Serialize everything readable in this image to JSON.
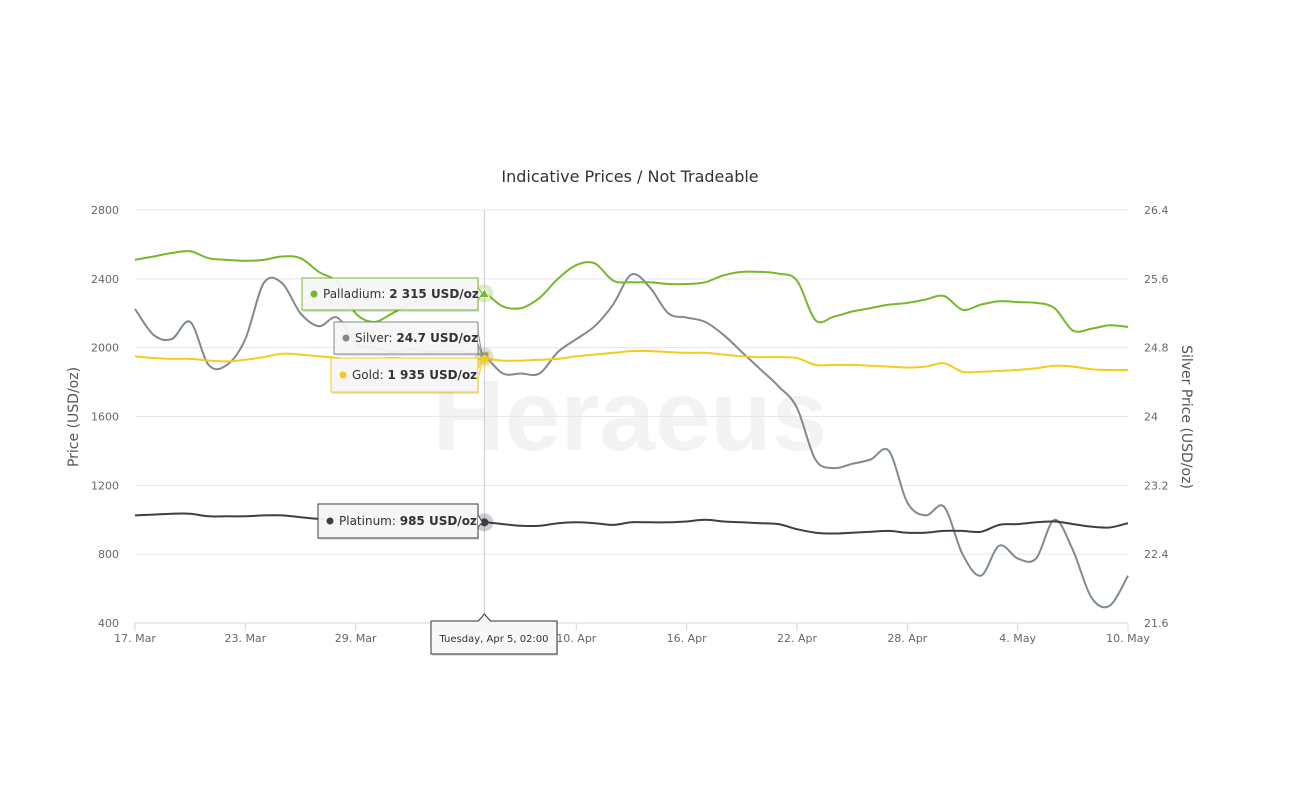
{
  "chart_data": {
    "type": "line",
    "title": "Indicative Prices / Not Tradeable",
    "watermark": "Heraeus",
    "xlabel": "",
    "ylabel": "Price (USD/oz)",
    "y2label": "Silver Price (USD/oz)",
    "ylim": [
      400,
      2800
    ],
    "y2lim": [
      21.6,
      26.4
    ],
    "xlim": [
      "2022-03-17",
      "2022-05-10"
    ],
    "yticks": [
      "400",
      "800",
      "1200",
      "1600",
      "2000",
      "2400",
      "2800"
    ],
    "y2ticks": [
      "21.6",
      "22.4",
      "23.2",
      "24",
      "24.8",
      "25.6",
      "26.4"
    ],
    "xticks": [
      {
        "date": "2022-03-17",
        "label": "17. Mar"
      },
      {
        "date": "2022-03-23",
        "label": "23. Mar"
      },
      {
        "date": "2022-03-29",
        "label": "29. Mar"
      },
      {
        "date": "2022-04-04",
        "label": "4. Apr"
      },
      {
        "date": "2022-04-10",
        "label": "10. Apr"
      },
      {
        "date": "2022-04-16",
        "label": "16. Apr"
      },
      {
        "date": "2022-04-22",
        "label": "22. Apr"
      },
      {
        "date": "2022-04-28",
        "label": "28. Apr"
      },
      {
        "date": "2022-05-04",
        "label": "4. May"
      },
      {
        "date": "2022-05-10",
        "label": "10. May"
      }
    ],
    "grid": true,
    "crosshair_date": "Tuesday, Apr 5, 02:00",
    "crosshair_x": "2022-04-05",
    "series": [
      {
        "name": "Palladium",
        "axis": "left",
        "color": "#76b82a",
        "marker": "triangle",
        "tooltip": "2 315 USD/oz",
        "tooltip_value": 2315,
        "data": [
          [
            "2022-03-17",
            2510
          ],
          [
            "2022-03-18",
            2530
          ],
          [
            "2022-03-19",
            2550
          ],
          [
            "2022-03-20",
            2560
          ],
          [
            "2022-03-21",
            2520
          ],
          [
            "2022-03-22",
            2510
          ],
          [
            "2022-03-23",
            2505
          ],
          [
            "2022-03-24",
            2510
          ],
          [
            "2022-03-25",
            2530
          ],
          [
            "2022-03-26",
            2520
          ],
          [
            "2022-03-27",
            2440
          ],
          [
            "2022-03-28",
            2380
          ],
          [
            "2022-03-29",
            2200
          ],
          [
            "2022-03-30",
            2150
          ],
          [
            "2022-03-31",
            2200
          ],
          [
            "2022-04-01",
            2260
          ],
          [
            "2022-04-02",
            2280
          ],
          [
            "2022-04-03",
            2300
          ],
          [
            "2022-04-04",
            2310
          ],
          [
            "2022-04-05",
            2315
          ],
          [
            "2022-04-06",
            2240
          ],
          [
            "2022-04-07",
            2230
          ],
          [
            "2022-04-08",
            2290
          ],
          [
            "2022-04-09",
            2400
          ],
          [
            "2022-04-10",
            2480
          ],
          [
            "2022-04-11",
            2490
          ],
          [
            "2022-04-12",
            2390
          ],
          [
            "2022-04-13",
            2380
          ],
          [
            "2022-04-14",
            2380
          ],
          [
            "2022-04-15",
            2370
          ],
          [
            "2022-04-16",
            2370
          ],
          [
            "2022-04-17",
            2380
          ],
          [
            "2022-04-18",
            2420
          ],
          [
            "2022-04-19",
            2440
          ],
          [
            "2022-04-20",
            2440
          ],
          [
            "2022-04-21",
            2430
          ],
          [
            "2022-04-22",
            2390
          ],
          [
            "2022-04-23",
            2160
          ],
          [
            "2022-04-24",
            2180
          ],
          [
            "2022-04-25",
            2210
          ],
          [
            "2022-04-26",
            2230
          ],
          [
            "2022-04-27",
            2250
          ],
          [
            "2022-04-28",
            2260
          ],
          [
            "2022-04-29",
            2280
          ],
          [
            "2022-04-30",
            2300
          ],
          [
            "2022-05-01",
            2220
          ],
          [
            "2022-05-02",
            2250
          ],
          [
            "2022-05-03",
            2270
          ],
          [
            "2022-05-04",
            2265
          ],
          [
            "2022-05-05",
            2260
          ],
          [
            "2022-05-06",
            2230
          ],
          [
            "2022-05-07",
            2100
          ],
          [
            "2022-05-08",
            2110
          ],
          [
            "2022-05-09",
            2130
          ],
          [
            "2022-05-10",
            2120
          ]
        ]
      },
      {
        "name": "Silver",
        "axis": "right",
        "color": "#7f8a93",
        "marker": "square",
        "tooltip": "24.7 USD/oz",
        "tooltip_value": 24.7,
        "data": [
          [
            "2022-03-17",
            25.25
          ],
          [
            "2022-03-18",
            24.95
          ],
          [
            "2022-03-19",
            24.9
          ],
          [
            "2022-03-20",
            25.1
          ],
          [
            "2022-03-21",
            24.6
          ],
          [
            "2022-03-22",
            24.6
          ],
          [
            "2022-03-23",
            24.9
          ],
          [
            "2022-03-24",
            25.55
          ],
          [
            "2022-03-25",
            25.55
          ],
          [
            "2022-03-26",
            25.2
          ],
          [
            "2022-03-27",
            25.05
          ],
          [
            "2022-03-28",
            25.15
          ],
          [
            "2022-03-29",
            24.85
          ],
          [
            "2022-03-30",
            24.8
          ],
          [
            "2022-03-31",
            24.75
          ],
          [
            "2022-04-01",
            24.78
          ],
          [
            "2022-04-02",
            24.75
          ],
          [
            "2022-04-03",
            24.76
          ],
          [
            "2022-04-04",
            24.75
          ],
          [
            "2022-04-05",
            24.7
          ],
          [
            "2022-04-06",
            24.5
          ],
          [
            "2022-04-07",
            24.5
          ],
          [
            "2022-04-08",
            24.5
          ],
          [
            "2022-04-09",
            24.75
          ],
          [
            "2022-04-10",
            24.9
          ],
          [
            "2022-04-11",
            25.05
          ],
          [
            "2022-04-12",
            25.3
          ],
          [
            "2022-04-13",
            25.65
          ],
          [
            "2022-04-14",
            25.5
          ],
          [
            "2022-04-15",
            25.2
          ],
          [
            "2022-04-16",
            25.15
          ],
          [
            "2022-04-17",
            25.1
          ],
          [
            "2022-04-18",
            24.95
          ],
          [
            "2022-04-19",
            24.75
          ],
          [
            "2022-04-20",
            24.55
          ],
          [
            "2022-04-21",
            24.35
          ],
          [
            "2022-04-22",
            24.1
          ],
          [
            "2022-04-23",
            23.5
          ],
          [
            "2022-04-24",
            23.4
          ],
          [
            "2022-04-25",
            23.45
          ],
          [
            "2022-04-26",
            23.5
          ],
          [
            "2022-04-27",
            23.6
          ],
          [
            "2022-04-28",
            23.0
          ],
          [
            "2022-04-29",
            22.85
          ],
          [
            "2022-04-30",
            22.95
          ],
          [
            "2022-05-01",
            22.4
          ],
          [
            "2022-05-02",
            22.15
          ],
          [
            "2022-05-03",
            22.5
          ],
          [
            "2022-05-04",
            22.35
          ],
          [
            "2022-05-05",
            22.35
          ],
          [
            "2022-05-06",
            22.8
          ],
          [
            "2022-05-07",
            22.45
          ],
          [
            "2022-05-08",
            21.9
          ],
          [
            "2022-05-09",
            21.8
          ],
          [
            "2022-05-10",
            22.15
          ]
        ]
      },
      {
        "name": "Gold",
        "axis": "left",
        "color": "#f5cc1b",
        "marker": "circle",
        "tooltip": "1 935 USD/oz",
        "tooltip_value": 1935,
        "data": [
          [
            "2022-03-17",
            1950
          ],
          [
            "2022-03-18",
            1940
          ],
          [
            "2022-03-19",
            1935
          ],
          [
            "2022-03-20",
            1935
          ],
          [
            "2022-03-21",
            1925
          ],
          [
            "2022-03-22",
            1920
          ],
          [
            "2022-03-23",
            1930
          ],
          [
            "2022-03-24",
            1945
          ],
          [
            "2022-03-25",
            1965
          ],
          [
            "2022-03-26",
            1960
          ],
          [
            "2022-03-27",
            1950
          ],
          [
            "2022-03-28",
            1940
          ],
          [
            "2022-03-29",
            1925
          ],
          [
            "2022-03-30",
            1935
          ],
          [
            "2022-03-31",
            1940
          ],
          [
            "2022-04-01",
            1935
          ],
          [
            "2022-04-02",
            1930
          ],
          [
            "2022-04-03",
            1930
          ],
          [
            "2022-04-04",
            1930
          ],
          [
            "2022-04-05",
            1935
          ],
          [
            "2022-04-06",
            1925
          ],
          [
            "2022-04-07",
            1925
          ],
          [
            "2022-04-08",
            1930
          ],
          [
            "2022-04-09",
            1935
          ],
          [
            "2022-04-10",
            1950
          ],
          [
            "2022-04-11",
            1960
          ],
          [
            "2022-04-12",
            1970
          ],
          [
            "2022-04-13",
            1980
          ],
          [
            "2022-04-14",
            1980
          ],
          [
            "2022-04-15",
            1975
          ],
          [
            "2022-04-16",
            1970
          ],
          [
            "2022-04-17",
            1970
          ],
          [
            "2022-04-18",
            1960
          ],
          [
            "2022-04-19",
            1950
          ],
          [
            "2022-04-20",
            1945
          ],
          [
            "2022-04-21",
            1945
          ],
          [
            "2022-04-22",
            1940
          ],
          [
            "2022-04-23",
            1900
          ],
          [
            "2022-04-24",
            1900
          ],
          [
            "2022-04-25",
            1900
          ],
          [
            "2022-04-26",
            1895
          ],
          [
            "2022-04-27",
            1890
          ],
          [
            "2022-04-28",
            1885
          ],
          [
            "2022-04-29",
            1890
          ],
          [
            "2022-04-30",
            1910
          ],
          [
            "2022-05-01",
            1860
          ],
          [
            "2022-05-02",
            1860
          ],
          [
            "2022-05-03",
            1865
          ],
          [
            "2022-05-04",
            1870
          ],
          [
            "2022-05-05",
            1880
          ],
          [
            "2022-05-06",
            1895
          ],
          [
            "2022-05-07",
            1890
          ],
          [
            "2022-05-08",
            1875
          ],
          [
            "2022-05-09",
            1870
          ],
          [
            "2022-05-10",
            1870
          ]
        ]
      },
      {
        "name": "Platinum",
        "axis": "left",
        "color": "#3c3f44",
        "marker": "circle",
        "tooltip": "985 USD/oz",
        "tooltip_value": 985,
        "data": [
          [
            "2022-03-17",
            1025
          ],
          [
            "2022-03-18",
            1030
          ],
          [
            "2022-03-19",
            1035
          ],
          [
            "2022-03-20",
            1035
          ],
          [
            "2022-03-21",
            1020
          ],
          [
            "2022-03-22",
            1020
          ],
          [
            "2022-03-23",
            1020
          ],
          [
            "2022-03-24",
            1025
          ],
          [
            "2022-03-25",
            1025
          ],
          [
            "2022-03-26",
            1015
          ],
          [
            "2022-03-27",
            1005
          ],
          [
            "2022-03-28",
            1000
          ],
          [
            "2022-03-29",
            990
          ],
          [
            "2022-03-30",
            985
          ],
          [
            "2022-03-31",
            990
          ],
          [
            "2022-04-01",
            995
          ],
          [
            "2022-04-02",
            990
          ],
          [
            "2022-04-03",
            985
          ],
          [
            "2022-04-04",
            985
          ],
          [
            "2022-04-05",
            985
          ],
          [
            "2022-04-06",
            975
          ],
          [
            "2022-04-07",
            965
          ],
          [
            "2022-04-08",
            965
          ],
          [
            "2022-04-09",
            980
          ],
          [
            "2022-04-10",
            985
          ],
          [
            "2022-04-11",
            980
          ],
          [
            "2022-04-12",
            970
          ],
          [
            "2022-04-13",
            985
          ],
          [
            "2022-04-14",
            985
          ],
          [
            "2022-04-15",
            985
          ],
          [
            "2022-04-16",
            990
          ],
          [
            "2022-04-17",
            1000
          ],
          [
            "2022-04-18",
            990
          ],
          [
            "2022-04-19",
            985
          ],
          [
            "2022-04-20",
            980
          ],
          [
            "2022-04-21",
            975
          ],
          [
            "2022-04-22",
            945
          ],
          [
            "2022-04-23",
            925
          ],
          [
            "2022-04-24",
            920
          ],
          [
            "2022-04-25",
            925
          ],
          [
            "2022-04-26",
            930
          ],
          [
            "2022-04-27",
            935
          ],
          [
            "2022-04-28",
            925
          ],
          [
            "2022-04-29",
            925
          ],
          [
            "2022-04-30",
            935
          ],
          [
            "2022-05-01",
            935
          ],
          [
            "2022-05-02",
            930
          ],
          [
            "2022-05-03",
            970
          ],
          [
            "2022-05-04",
            975
          ],
          [
            "2022-05-05",
            985
          ],
          [
            "2022-05-06",
            990
          ],
          [
            "2022-05-07",
            975
          ],
          [
            "2022-05-08",
            960
          ],
          [
            "2022-05-09",
            955
          ],
          [
            "2022-05-10",
            980
          ]
        ]
      }
    ]
  }
}
